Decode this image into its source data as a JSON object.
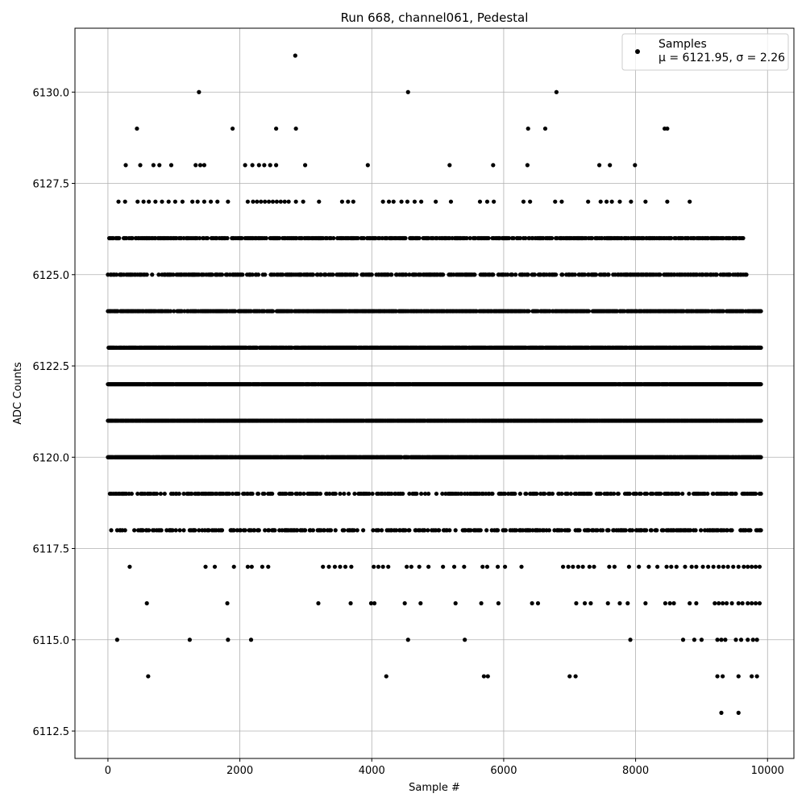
{
  "chart_data": {
    "type": "scatter",
    "title": "Run 668, channel061, Pedestal",
    "xlabel": "Sample #",
    "ylabel": "ADC Counts",
    "xlim": [
      -500,
      10400
    ],
    "ylim": [
      6111.75,
      6131.75
    ],
    "xticks": [
      0,
      2000,
      4000,
      6000,
      8000,
      10000
    ],
    "xtick_labels": [
      "0",
      "2000",
      "4000",
      "6000",
      "8000",
      "10000"
    ],
    "yticks": [
      6112.5,
      6115.0,
      6117.5,
      6120.0,
      6122.5,
      6125.0,
      6127.5,
      6130.0
    ],
    "ytick_labels": [
      "6112.5",
      "6115.0",
      "6117.5",
      "6120.0",
      "6122.5",
      "6125.0",
      "6127.5",
      "6130.0"
    ],
    "grid": true,
    "legend": {
      "placement": "top-right",
      "entries": [
        {
          "label_line1": "Samples",
          "label_line2": "μ = 6121.95, σ = 2.26"
        }
      ]
    },
    "marker_color": "#000000",
    "series": [
      {
        "name": "Samples",
        "band_coverage": [
          {
            "y": 6120,
            "ranges": [
              [
                0,
                9900
              ]
            ],
            "density": 0.92
          },
          {
            "y": 6121,
            "ranges": [
              [
                0,
                9900
              ]
            ],
            "density": 0.92
          },
          {
            "y": 6122,
            "ranges": [
              [
                0,
                9900
              ]
            ],
            "density": 0.98
          },
          {
            "y": 6123,
            "ranges": [
              [
                0,
                9900
              ]
            ],
            "density": 0.9
          },
          {
            "y": 6124,
            "ranges": [
              [
                0,
                9900
              ]
            ],
            "density": 0.7
          },
          {
            "y": 6125,
            "ranges": [
              [
                0,
                9700
              ]
            ],
            "density": 0.45
          },
          {
            "y": 6126,
            "ranges": [
              [
                0,
                9650
              ]
            ],
            "density": 0.5
          },
          {
            "y": 6119,
            "ranges": [
              [
                0,
                9900
              ]
            ],
            "density": 0.35
          },
          {
            "y": 6118,
            "ranges": [
              [
                0,
                9900
              ]
            ],
            "density": 0.35
          }
        ],
        "sparse_points": [
          [
            330,
            6117
          ],
          [
            1480,
            6117
          ],
          [
            1620,
            6117
          ],
          [
            1910,
            6117
          ],
          [
            2120,
            6117
          ],
          [
            2180,
            6117
          ],
          [
            2340,
            6117
          ],
          [
            2430,
            6117
          ],
          [
            3260,
            6117
          ],
          [
            3350,
            6117
          ],
          [
            3440,
            6117
          ],
          [
            3520,
            6117
          ],
          [
            3600,
            6117
          ],
          [
            3690,
            6117
          ],
          [
            4030,
            6117
          ],
          [
            4100,
            6117
          ],
          [
            4170,
            6117
          ],
          [
            4250,
            6117
          ],
          [
            4530,
            6117
          ],
          [
            4600,
            6117
          ],
          [
            4720,
            6117
          ],
          [
            4860,
            6117
          ],
          [
            5080,
            6117
          ],
          [
            5250,
            6117
          ],
          [
            5400,
            6117
          ],
          [
            5680,
            6117
          ],
          [
            5750,
            6117
          ],
          [
            5910,
            6117
          ],
          [
            6020,
            6117
          ],
          [
            6270,
            6117
          ],
          [
            6900,
            6117
          ],
          [
            6980,
            6117
          ],
          [
            7050,
            6117
          ],
          [
            7130,
            6117
          ],
          [
            7200,
            6117
          ],
          [
            7300,
            6117
          ],
          [
            7370,
            6117
          ],
          [
            7600,
            6117
          ],
          [
            7680,
            6117
          ],
          [
            7900,
            6117
          ],
          [
            8050,
            6117
          ],
          [
            8200,
            6117
          ],
          [
            8330,
            6117
          ],
          [
            8470,
            6117
          ],
          [
            8540,
            6117
          ],
          [
            8620,
            6117
          ],
          [
            8750,
            6117
          ],
          [
            8850,
            6117
          ],
          [
            8920,
            6117
          ],
          [
            9020,
            6117
          ],
          [
            9100,
            6117
          ],
          [
            9180,
            6117
          ],
          [
            9260,
            6117
          ],
          [
            9330,
            6117
          ],
          [
            9400,
            6117
          ],
          [
            9480,
            6117
          ],
          [
            9560,
            6117
          ],
          [
            9640,
            6117
          ],
          [
            9700,
            6117
          ],
          [
            9760,
            6117
          ],
          [
            9820,
            6117
          ],
          [
            9880,
            6117
          ],
          [
            590,
            6116
          ],
          [
            1810,
            6116
          ],
          [
            3190,
            6116
          ],
          [
            3680,
            6116
          ],
          [
            3990,
            6116
          ],
          [
            4040,
            6116
          ],
          [
            4500,
            6116
          ],
          [
            4740,
            6116
          ],
          [
            5270,
            6116
          ],
          [
            5660,
            6116
          ],
          [
            5920,
            6116
          ],
          [
            6430,
            6116
          ],
          [
            6520,
            6116
          ],
          [
            7100,
            6116
          ],
          [
            7230,
            6116
          ],
          [
            7320,
            6116
          ],
          [
            7580,
            6116
          ],
          [
            7760,
            6116
          ],
          [
            7880,
            6116
          ],
          [
            8150,
            6116
          ],
          [
            8450,
            6116
          ],
          [
            8520,
            6116
          ],
          [
            8580,
            6116
          ],
          [
            8820,
            6116
          ],
          [
            8920,
            6116
          ],
          [
            9200,
            6116
          ],
          [
            9260,
            6116
          ],
          [
            9320,
            6116
          ],
          [
            9380,
            6116
          ],
          [
            9460,
            6116
          ],
          [
            9560,
            6116
          ],
          [
            9620,
            6116
          ],
          [
            9700,
            6116
          ],
          [
            9760,
            6116
          ],
          [
            9820,
            6116
          ],
          [
            9880,
            6116
          ],
          [
            140,
            6115
          ],
          [
            1240,
            6115
          ],
          [
            1820,
            6115
          ],
          [
            2170,
            6115
          ],
          [
            4550,
            6115
          ],
          [
            5410,
            6115
          ],
          [
            7920,
            6115
          ],
          [
            8720,
            6115
          ],
          [
            8890,
            6115
          ],
          [
            9000,
            6115
          ],
          [
            9240,
            6115
          ],
          [
            9300,
            6115
          ],
          [
            9360,
            6115
          ],
          [
            9520,
            6115
          ],
          [
            9600,
            6115
          ],
          [
            9700,
            6115
          ],
          [
            9780,
            6115
          ],
          [
            9840,
            6115
          ],
          [
            610,
            6114
          ],
          [
            4220,
            6114
          ],
          [
            5700,
            6114
          ],
          [
            5760,
            6114
          ],
          [
            7000,
            6114
          ],
          [
            7090,
            6114
          ],
          [
            9240,
            6114
          ],
          [
            9320,
            6114
          ],
          [
            9560,
            6114
          ],
          [
            9760,
            6114
          ],
          [
            9840,
            6114
          ],
          [
            9300,
            6113
          ],
          [
            9560,
            6113
          ],
          [
            160,
            6127
          ],
          [
            260,
            6127
          ],
          [
            450,
            6127
          ],
          [
            540,
            6127
          ],
          [
            620,
            6127
          ],
          [
            720,
            6127
          ],
          [
            820,
            6127
          ],
          [
            920,
            6127
          ],
          [
            1020,
            6127
          ],
          [
            1130,
            6127
          ],
          [
            1280,
            6127
          ],
          [
            1360,
            6127
          ],
          [
            1460,
            6127
          ],
          [
            1560,
            6127
          ],
          [
            1660,
            6127
          ],
          [
            1820,
            6127
          ],
          [
            2120,
            6127
          ],
          [
            2200,
            6127
          ],
          [
            2260,
            6127
          ],
          [
            2320,
            6127
          ],
          [
            2380,
            6127
          ],
          [
            2440,
            6127
          ],
          [
            2500,
            6127
          ],
          [
            2560,
            6127
          ],
          [
            2620,
            6127
          ],
          [
            2680,
            6127
          ],
          [
            2740,
            6127
          ],
          [
            2850,
            6127
          ],
          [
            2960,
            6127
          ],
          [
            3200,
            6127
          ],
          [
            3550,
            6127
          ],
          [
            3640,
            6127
          ],
          [
            3720,
            6127
          ],
          [
            4170,
            6127
          ],
          [
            4260,
            6127
          ],
          [
            4330,
            6127
          ],
          [
            4450,
            6127
          ],
          [
            4540,
            6127
          ],
          [
            4650,
            6127
          ],
          [
            4750,
            6127
          ],
          [
            4970,
            6127
          ],
          [
            5200,
            6127
          ],
          [
            5640,
            6127
          ],
          [
            5750,
            6127
          ],
          [
            5850,
            6127
          ],
          [
            6300,
            6127
          ],
          [
            6400,
            6127
          ],
          [
            6780,
            6127
          ],
          [
            6880,
            6127
          ],
          [
            7280,
            6127
          ],
          [
            7470,
            6127
          ],
          [
            7560,
            6127
          ],
          [
            7640,
            6127
          ],
          [
            7760,
            6127
          ],
          [
            7930,
            6127
          ],
          [
            8150,
            6127
          ],
          [
            8480,
            6127
          ],
          [
            8820,
            6127
          ],
          [
            270,
            6128
          ],
          [
            490,
            6128
          ],
          [
            690,
            6128
          ],
          [
            780,
            6128
          ],
          [
            960,
            6128
          ],
          [
            1330,
            6128
          ],
          [
            1400,
            6128
          ],
          [
            1460,
            6128
          ],
          [
            2080,
            6128
          ],
          [
            2190,
            6128
          ],
          [
            2290,
            6128
          ],
          [
            2370,
            6128
          ],
          [
            2460,
            6128
          ],
          [
            2550,
            6128
          ],
          [
            2990,
            6128
          ],
          [
            3940,
            6128
          ],
          [
            5180,
            6128
          ],
          [
            5840,
            6128
          ],
          [
            6360,
            6128
          ],
          [
            7450,
            6128
          ],
          [
            7610,
            6128
          ],
          [
            7990,
            6128
          ],
          [
            440,
            6129
          ],
          [
            1890,
            6129
          ],
          [
            2550,
            6129
          ],
          [
            2850,
            6129
          ],
          [
            6370,
            6129
          ],
          [
            6630,
            6129
          ],
          [
            8440,
            6129
          ],
          [
            8480,
            6129
          ],
          [
            1380,
            6130
          ],
          [
            4550,
            6130
          ],
          [
            6800,
            6130
          ],
          [
            2840,
            6131
          ]
        ]
      }
    ]
  }
}
